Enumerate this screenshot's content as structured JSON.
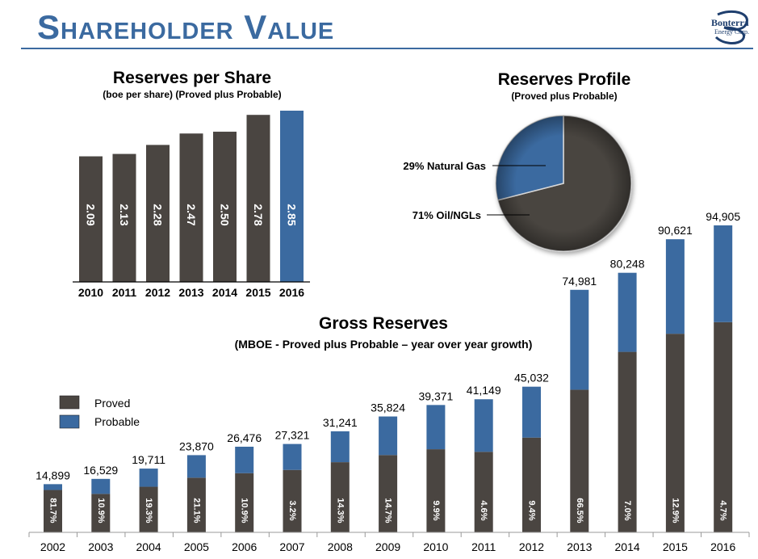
{
  "slide": {
    "title": "Shareholder Value"
  },
  "logo": {
    "line1": "Bonterra",
    "line2": "Energy Corp."
  },
  "chart_data": [
    {
      "type": "bar",
      "title": "Reserves per Share",
      "subtitle": "(boe per share) (Proved plus Probable)",
      "categories": [
        "2010",
        "2011",
        "2012",
        "2013",
        "2014",
        "2015",
        "2016"
      ],
      "values": [
        2.09,
        2.13,
        2.28,
        2.47,
        2.5,
        2.78,
        2.85
      ],
      "labels": [
        "2.09",
        "2.13",
        "2.28",
        "2.47",
        "2.50",
        "2.78",
        "2.85"
      ],
      "colors": [
        "#4a4541",
        "#4a4541",
        "#4a4541",
        "#4a4541",
        "#4a4541",
        "#4a4541",
        "#3b6aa0"
      ],
      "ylim": [
        0,
        2.85
      ],
      "grid": false
    },
    {
      "type": "pie",
      "title": "Reserves Profile",
      "subtitle": "(Proved plus Probable)",
      "slices": [
        {
          "label": "71% Oil/NGLs",
          "value": 71,
          "color": "#4a4541"
        },
        {
          "label": "29% Natural Gas",
          "value": 29,
          "color": "#3b6aa0"
        }
      ]
    },
    {
      "type": "bar",
      "stacked": true,
      "title": "Gross Reserves",
      "subtitle": "(MBOE - Proved plus Probable – year over year growth)",
      "categories": [
        "2002",
        "2003",
        "2004",
        "2005",
        "2006",
        "2007",
        "2008",
        "2009",
        "2010",
        "2011",
        "2012",
        "2013",
        "2014",
        "2015",
        "2016"
      ],
      "totals": [
        14899,
        16529,
        19711,
        23870,
        26476,
        27321,
        31241,
        35824,
        39371,
        41149,
        45032,
        74981,
        80248,
        90621,
        94905
      ],
      "total_labels": [
        "14,899",
        "16,529",
        "19,711",
        "23,870",
        "26,476",
        "27,321",
        "31,241",
        "35,824",
        "39,371",
        "41,149",
        "45,032",
        "74,981",
        "80,248",
        "90,621",
        "94,905"
      ],
      "growth_labels": [
        "81.7%",
        "10.9%",
        "19.3%",
        "21.1%",
        "10.9%",
        "3.2%",
        "14.3%",
        "14.7%",
        "9.9%",
        "4.6%",
        "9.4%",
        "66.5%",
        "7.0%",
        "12.9%",
        "4.7%"
      ],
      "series": [
        {
          "name": "Proved",
          "color": "#4a4541",
          "values": [
            13100,
            11900,
            14100,
            16900,
            18300,
            19300,
            21700,
            23900,
            25700,
            24900,
            29300,
            44100,
            55800,
            61400,
            65000
          ]
        },
        {
          "name": "Probable",
          "color": "#3b6aa0",
          "values": [
            1799,
            4629,
            5611,
            6970,
            8176,
            8021,
            9541,
            11924,
            13671,
            16249,
            15732,
            30881,
            24448,
            29221,
            29905
          ]
        }
      ],
      "legend": "top-left",
      "ylim": [
        0,
        94905
      ],
      "grid": false
    }
  ]
}
